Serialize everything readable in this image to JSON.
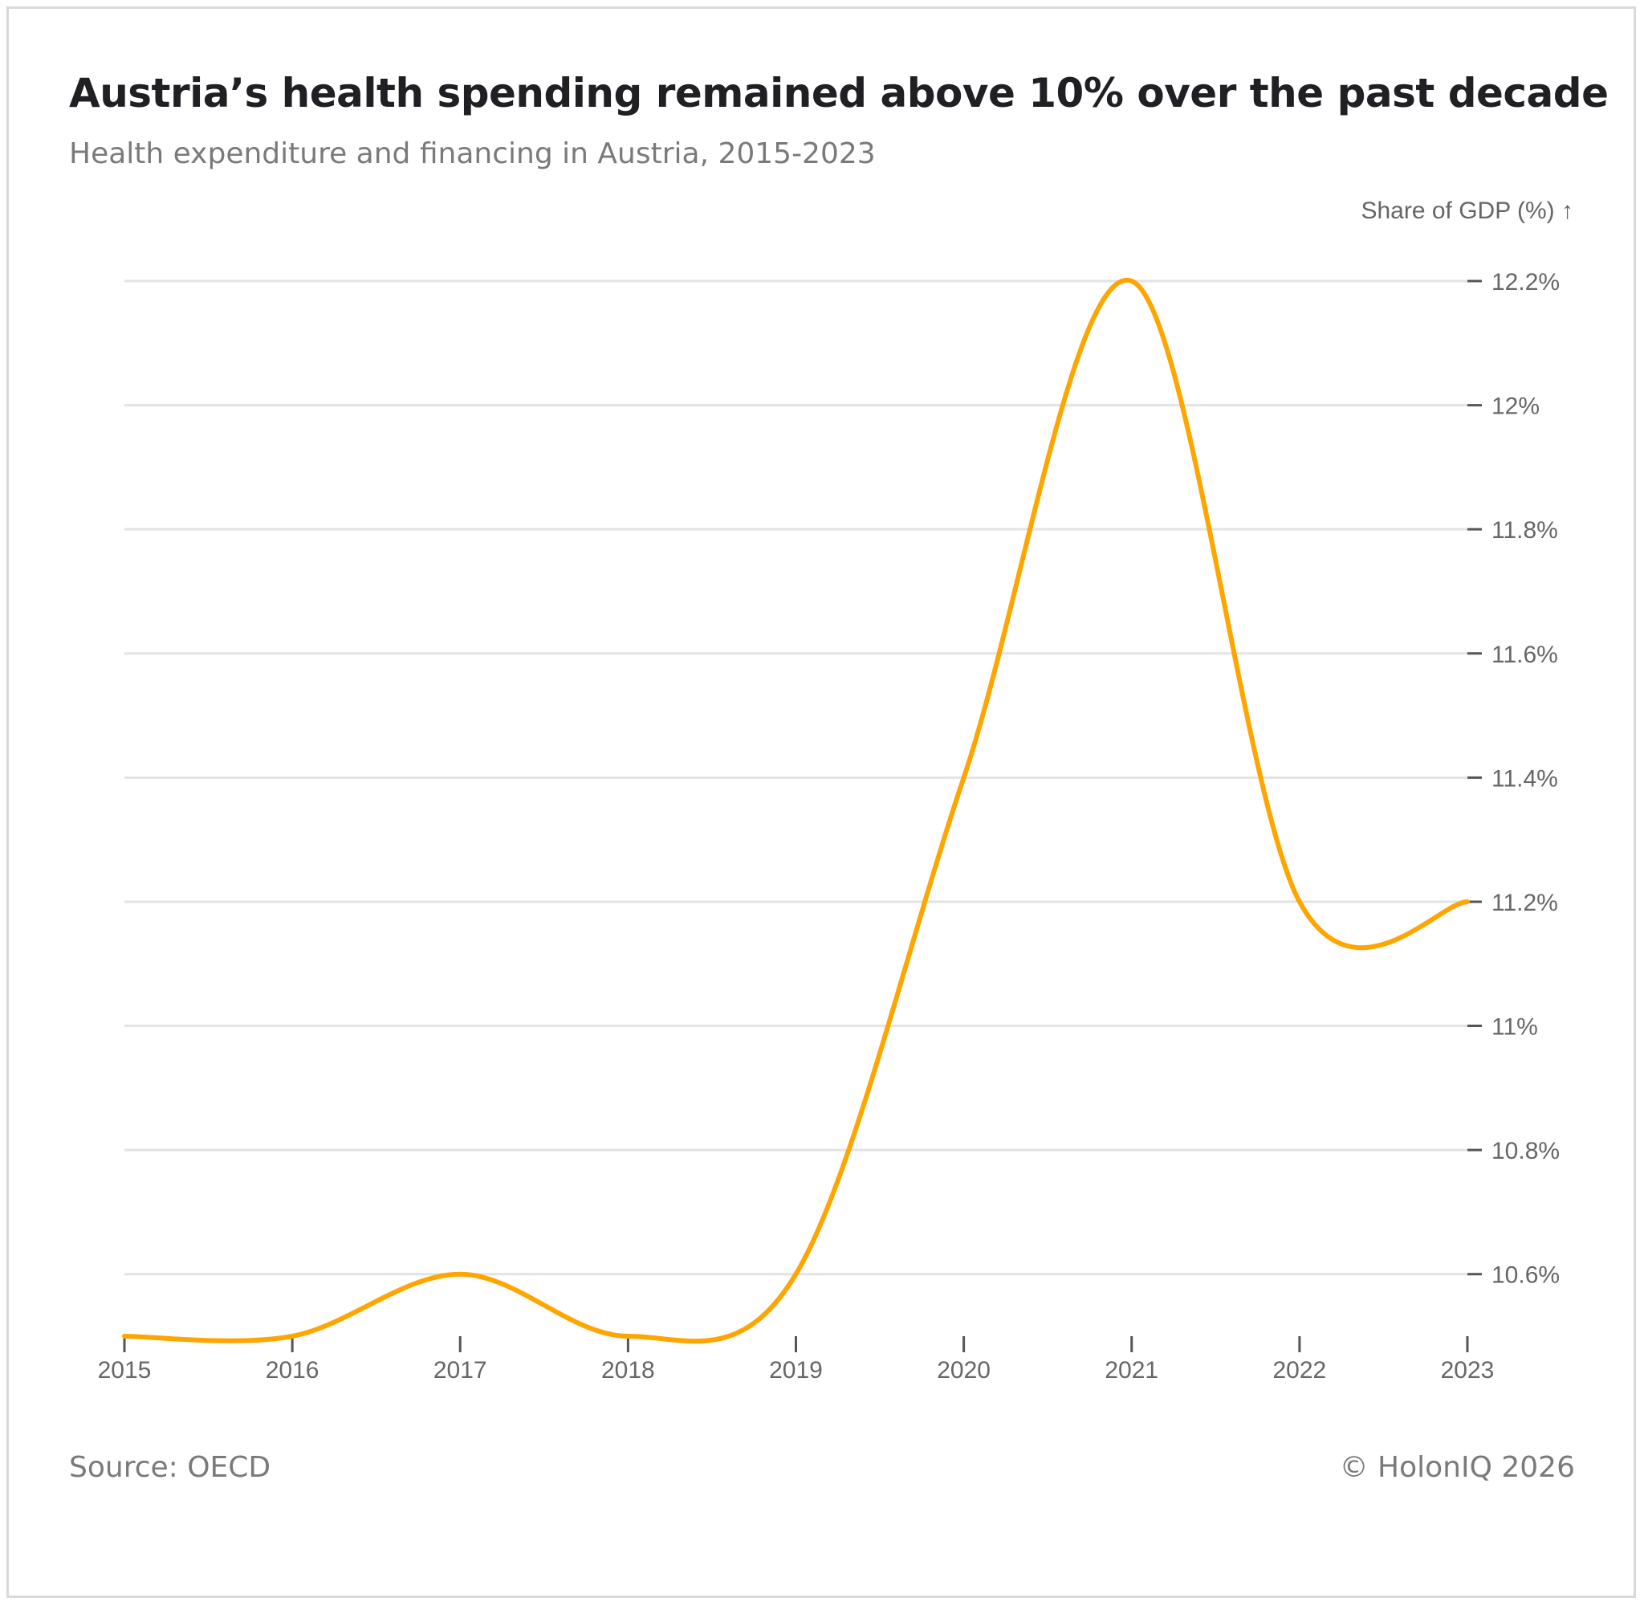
{
  "header": {
    "title": "Austria’s health spending remained above 10% over the past decade",
    "subtitle": "Health expenditure and financing in Austria, 2015-2023"
  },
  "footer": {
    "source": "Source: OECD",
    "copyright": "© HolonIQ 2026"
  },
  "colors": {
    "line": "#ffa500",
    "grid": "#e3e3e3",
    "text": "#666666"
  },
  "chart_data": {
    "type": "line",
    "title": "Austria’s health spending remained above 10% over the past decade",
    "subtitle": "Health expenditure and financing in Austria, 2015-2023",
    "xlabel": "",
    "ylabel": "Share of GDP (%) ↑",
    "x": [
      "2015",
      "2016",
      "2017",
      "2018",
      "2019",
      "2020",
      "2021",
      "2022",
      "2023"
    ],
    "series": [
      {
        "name": "Share of GDP (%)",
        "values": [
          10.5,
          10.5,
          10.6,
          10.5,
          10.6,
          11.4,
          12.2,
          11.2,
          11.2
        ]
      }
    ],
    "ylim": [
      10.5,
      12.2
    ],
    "yticks": [
      10.6,
      10.8,
      11,
      11.2,
      11.4,
      11.6,
      11.8,
      12,
      12.2
    ],
    "ytick_labels": [
      "10.6%",
      "10.8%",
      "11%",
      "11.2%",
      "11.4%",
      "11.6%",
      "11.8%",
      "12%",
      "12.2%"
    ],
    "grid": true,
    "y_axis_side": "right",
    "curve": "smooth"
  }
}
